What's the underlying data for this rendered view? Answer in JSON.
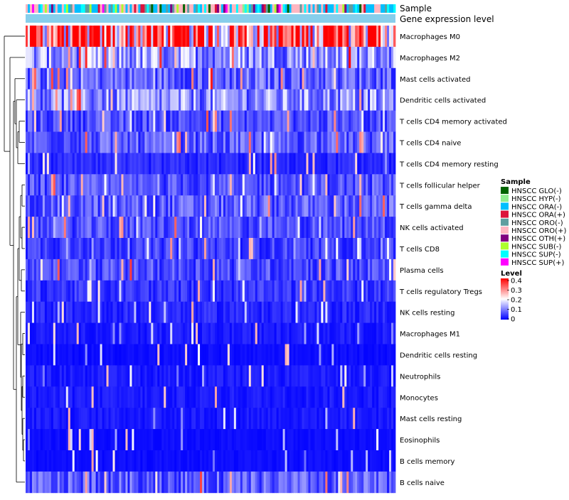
{
  "chart_data": {
    "type": "heatmap",
    "title": "",
    "annotation_labels": [
      "Sample",
      "Gene expression level"
    ],
    "rows": [
      "Macrophages M0",
      "Macrophages M2",
      "Mast cells activated",
      "Dendritic cells activated",
      "T cells CD4 memory activated",
      "T cells CD4 naive",
      "T cells CD4 memory resting",
      "T cells follicular helper",
      "T cells gamma delta",
      "NK cells activated",
      "T cells CD8",
      "Plasma cells",
      "T cells regulatory  Tregs",
      "NK cells resting",
      "Macrophages M1",
      "Dendritic cells resting",
      "Neutrophils",
      "Monocytes",
      "Mast cells resting",
      "Eosinophils",
      "B cells memory",
      "B cells naive"
    ],
    "row_means": [
      0.3,
      0.12,
      0.08,
      0.11,
      0.06,
      0.07,
      0.03,
      0.06,
      0.07,
      0.06,
      0.05,
      0.06,
      0.04,
      0.03,
      0.02,
      0.01,
      0.02,
      0.02,
      0.02,
      0.01,
      0.01,
      0.07
    ],
    "n_samples": 174,
    "sample_legend": {
      "title": "Sample",
      "entries": [
        {
          "label": "HNSCC GLO(-)",
          "color": "#006400"
        },
        {
          "label": "HNSCC HYP(-)",
          "color": "#90EE90"
        },
        {
          "label": "HNSCC ORA(-)",
          "color": "#00BFFF"
        },
        {
          "label": "HNSCC ORA(+)",
          "color": "#DC143C"
        },
        {
          "label": "HNSCC ORO(-)",
          "color": "#5F9EA0"
        },
        {
          "label": "HNSCC ORO(+)",
          "color": "#FFB6C1"
        },
        {
          "label": "HNSCC OTH(+)",
          "color": "#800080"
        },
        {
          "label": "HNSCC SUB(-)",
          "color": "#ADFF2F"
        },
        {
          "label": "HNSCC SUP(-)",
          "color": "#00FFFF"
        },
        {
          "label": "HNSCC SUP(+)",
          "color": "#FF00FF"
        }
      ]
    },
    "level_legend": {
      "title": "Level",
      "ticks": [
        "0.4",
        "0.3",
        "0.2",
        "0.1",
        "0"
      ],
      "range": [
        0,
        0.4
      ],
      "colors": [
        "#0000FF",
        "#FFFFFF",
        "#FF0000"
      ]
    },
    "gene_expression_color": "#87CEEB"
  }
}
